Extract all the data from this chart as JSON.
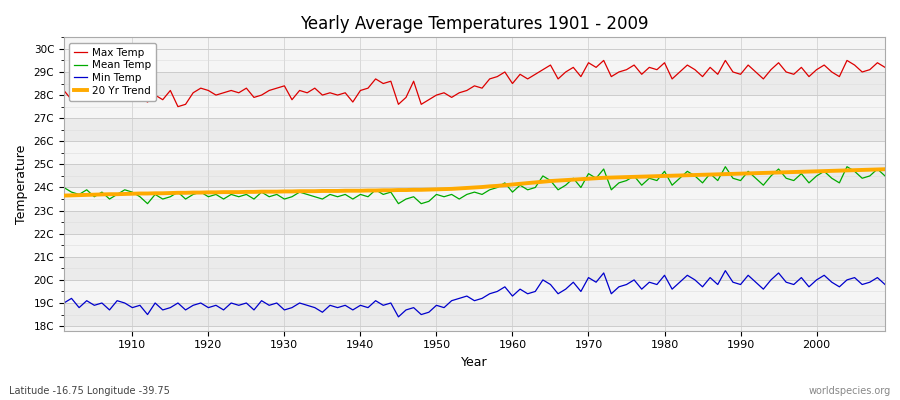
{
  "title": "Yearly Average Temperatures 1901 - 2009",
  "xlabel": "Year",
  "ylabel": "Temperature",
  "footnote_left": "Latitude -16.75 Longitude -39.75",
  "footnote_right": "worldspecies.org",
  "legend_labels": [
    "Max Temp",
    "Mean Temp",
    "Min Temp",
    "20 Yr Trend"
  ],
  "legend_colors": [
    "#dd0000",
    "#00aa00",
    "#0000cc",
    "#ffaa00"
  ],
  "yticks": [
    18,
    19,
    20,
    21,
    22,
    23,
    24,
    25,
    26,
    27,
    28,
    29,
    30
  ],
  "ytick_labels": [
    "18C",
    "19C",
    "20C",
    "21C",
    "22C",
    "23C",
    "24C",
    "25C",
    "26C",
    "27C",
    "28C",
    "29C",
    "30C"
  ],
  "xlim": [
    1901,
    2009
  ],
  "ylim": [
    17.8,
    30.5
  ],
  "bg_color": "#ffffff",
  "plot_bg_color": "#f5f5f5",
  "grid_color": "#cccccc",
  "years_start": 1901,
  "years_end": 2009,
  "seed": 17,
  "max_temp_values": [
    28.2,
    27.8,
    27.9,
    28.1,
    28.3,
    28.0,
    28.2,
    28.4,
    28.1,
    28.3,
    27.9,
    27.7,
    28.0,
    27.8,
    28.2,
    27.5,
    27.6,
    28.1,
    28.3,
    28.2,
    28.0,
    28.1,
    28.2,
    28.1,
    28.3,
    27.9,
    28.0,
    28.2,
    28.3,
    28.4,
    27.8,
    28.2,
    28.1,
    28.3,
    28.0,
    28.1,
    28.0,
    28.1,
    27.7,
    28.2,
    28.3,
    28.7,
    28.5,
    28.6,
    27.6,
    27.9,
    28.6,
    27.6,
    27.8,
    28.0,
    28.1,
    27.9,
    28.1,
    28.2,
    28.4,
    28.3,
    28.7,
    28.8,
    29.0,
    28.5,
    28.9,
    28.7,
    28.9,
    29.1,
    29.3,
    28.7,
    29.0,
    29.2,
    28.8,
    29.4,
    29.2,
    29.5,
    28.8,
    29.0,
    29.1,
    29.3,
    28.9,
    29.2,
    29.1,
    29.4,
    28.7,
    29.0,
    29.3,
    29.1,
    28.8,
    29.2,
    28.9,
    29.5,
    29.0,
    28.9,
    29.3,
    29.0,
    28.7,
    29.1,
    29.4,
    29.0,
    28.9,
    29.2,
    28.8,
    29.1,
    29.3,
    29.0,
    28.8,
    29.5,
    29.3,
    29.0,
    29.1,
    29.4,
    29.2
  ],
  "mean_temp_values": [
    24.0,
    23.8,
    23.7,
    23.9,
    23.6,
    23.8,
    23.5,
    23.7,
    23.9,
    23.8,
    23.6,
    23.3,
    23.7,
    23.5,
    23.6,
    23.8,
    23.5,
    23.7,
    23.8,
    23.6,
    23.7,
    23.5,
    23.7,
    23.6,
    23.7,
    23.5,
    23.8,
    23.6,
    23.7,
    23.5,
    23.6,
    23.8,
    23.7,
    23.6,
    23.5,
    23.7,
    23.6,
    23.7,
    23.5,
    23.7,
    23.6,
    23.9,
    23.7,
    23.8,
    23.3,
    23.5,
    23.6,
    23.3,
    23.4,
    23.7,
    23.6,
    23.7,
    23.5,
    23.7,
    23.8,
    23.7,
    23.9,
    24.0,
    24.2,
    23.8,
    24.1,
    23.9,
    24.0,
    24.5,
    24.3,
    23.9,
    24.1,
    24.4,
    24.0,
    24.6,
    24.4,
    24.8,
    23.9,
    24.2,
    24.3,
    24.5,
    24.1,
    24.4,
    24.3,
    24.7,
    24.1,
    24.4,
    24.7,
    24.5,
    24.2,
    24.6,
    24.3,
    24.9,
    24.4,
    24.3,
    24.7,
    24.4,
    24.1,
    24.5,
    24.8,
    24.4,
    24.3,
    24.6,
    24.2,
    24.5,
    24.7,
    24.4,
    24.2,
    24.9,
    24.7,
    24.4,
    24.5,
    24.8,
    24.5
  ],
  "min_temp_values": [
    19.0,
    19.2,
    18.8,
    19.1,
    18.9,
    19.0,
    18.7,
    19.1,
    19.0,
    18.8,
    18.9,
    18.5,
    19.0,
    18.7,
    18.8,
    19.0,
    18.7,
    18.9,
    19.0,
    18.8,
    18.9,
    18.7,
    19.0,
    18.9,
    19.0,
    18.7,
    19.1,
    18.9,
    19.0,
    18.7,
    18.8,
    19.0,
    18.9,
    18.8,
    18.6,
    18.9,
    18.8,
    18.9,
    18.7,
    18.9,
    18.8,
    19.1,
    18.9,
    19.0,
    18.4,
    18.7,
    18.8,
    18.5,
    18.6,
    18.9,
    18.8,
    19.1,
    19.2,
    19.3,
    19.1,
    19.2,
    19.4,
    19.5,
    19.7,
    19.3,
    19.6,
    19.4,
    19.5,
    20.0,
    19.8,
    19.4,
    19.6,
    19.9,
    19.5,
    20.1,
    19.9,
    20.3,
    19.4,
    19.7,
    19.8,
    20.0,
    19.6,
    19.9,
    19.8,
    20.2,
    19.6,
    19.9,
    20.2,
    20.0,
    19.7,
    20.1,
    19.8,
    20.4,
    19.9,
    19.8,
    20.2,
    19.9,
    19.6,
    20.0,
    20.3,
    19.9,
    19.8,
    20.1,
    19.7,
    20.0,
    20.2,
    19.9,
    19.7,
    20.0,
    20.1,
    19.8,
    19.9,
    20.1,
    19.8
  ],
  "trend_values": [
    23.65,
    23.66,
    23.67,
    23.68,
    23.69,
    23.7,
    23.71,
    23.71,
    23.72,
    23.73,
    23.74,
    23.74,
    23.75,
    23.75,
    23.76,
    23.77,
    23.77,
    23.78,
    23.78,
    23.79,
    23.79,
    23.8,
    23.8,
    23.8,
    23.81,
    23.81,
    23.82,
    23.82,
    23.82,
    23.83,
    23.83,
    23.84,
    23.84,
    23.84,
    23.85,
    23.85,
    23.85,
    23.86,
    23.86,
    23.86,
    23.87,
    23.87,
    23.88,
    23.88,
    23.89,
    23.89,
    23.9,
    23.9,
    23.91,
    23.92,
    23.93,
    23.94,
    23.96,
    23.98,
    24.0,
    24.02,
    24.05,
    24.07,
    24.1,
    24.13,
    24.16,
    24.19,
    24.22,
    24.25,
    24.28,
    24.3,
    24.32,
    24.34,
    24.36,
    24.38,
    24.4,
    24.42,
    24.43,
    24.44,
    24.45,
    24.46,
    24.47,
    24.48,
    24.49,
    24.5,
    24.51,
    24.52,
    24.53,
    24.54,
    24.55,
    24.56,
    24.57,
    24.58,
    24.59,
    24.6,
    24.61,
    24.62,
    24.63,
    24.64,
    24.65,
    24.66,
    24.67,
    24.68,
    24.69,
    24.7,
    24.71,
    24.72,
    24.73,
    24.74,
    24.75,
    24.76,
    24.77,
    24.78,
    24.79
  ]
}
